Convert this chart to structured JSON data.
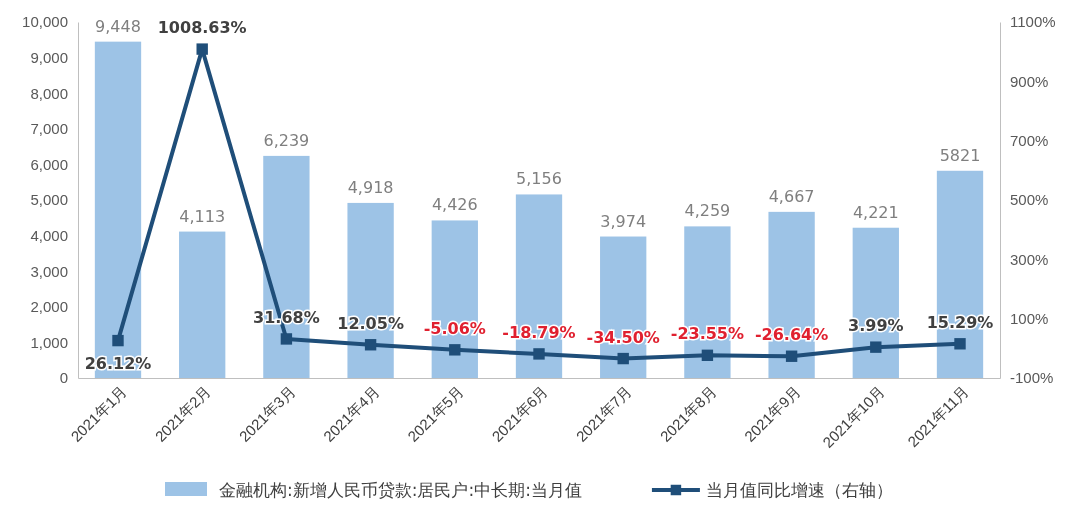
{
  "chart_data": {
    "type": "bar",
    "categories": [
      "2021年1月",
      "2021年2月",
      "2021年3月",
      "2021年4月",
      "2021年5月",
      "2021年6月",
      "2021年7月",
      "2021年8月",
      "2021年9月",
      "2021年10月",
      "2021年11月"
    ],
    "series": [
      {
        "name": "金融机构:新增人民币贷款:居民户:中长期:当月值",
        "color": "#9dc3e6",
        "values": [
          9448,
          4113,
          6239,
          4918,
          4426,
          5156,
          3974,
          4259,
          4667,
          4221,
          5821
        ],
        "value_labels": [
          "9,448",
          "4,113",
          "6,239",
          "4,918",
          "4,426",
          "5,156",
          "3,974",
          "4,259",
          "4,667",
          "4,221",
          "5821"
        ]
      },
      {
        "name": "当月值同比增速（右轴）",
        "type": "line",
        "axis": "y2",
        "color": "#1f4e79",
        "values": [
          26.12,
          1008.63,
          31.68,
          12.05,
          -5.06,
          -18.79,
          -34.5,
          -23.55,
          -26.64,
          3.99,
          15.29
        ],
        "value_labels": [
          "26.12%",
          "1008.63%",
          "31.68%",
          "12.05%",
          "-5.06%",
          "-18.79%",
          "-34.50%",
          "-23.55%",
          "-26.64%",
          "3.99%",
          "15.29%"
        ]
      }
    ],
    "ylim": [
      0,
      10000
    ],
    "yticks": [
      0,
      {
        "value": 1000,
        "label": "1,000"
      },
      {
        "value": 2000,
        "label": "2,000"
      },
      {
        "value": 3000,
        "label": "3,000"
      },
      {
        "value": 4000,
        "label": "4,000"
      },
      {
        "value": 5000,
        "label": "5,000"
      },
      {
        "value": 6000,
        "label": "6,000"
      },
      {
        "value": 7000,
        "label": "7,000"
      },
      {
        "value": 8000,
        "label": "8,000"
      },
      {
        "value": 9000,
        "label": "9,000"
      },
      {
        "value": 10000,
        "label": "10,000"
      }
    ],
    "y2lim": [
      -100,
      1100
    ],
    "y2ticks": [
      {
        "value": -100,
        "label": "-100%"
      },
      {
        "value": 100,
        "label": "100%"
      },
      {
        "value": 300,
        "label": "300%"
      },
      {
        "value": 500,
        "label": "500%"
      },
      {
        "value": 700,
        "label": "700%"
      },
      {
        "value": 900,
        "label": "900%"
      },
      {
        "value": 1100,
        "label": "1100%"
      }
    ],
    "marker": "square",
    "line_style": "solid",
    "grid": false,
    "legend": "bottom"
  }
}
